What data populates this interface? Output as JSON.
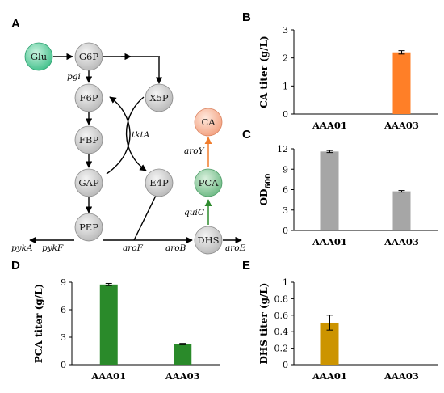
{
  "panels": {
    "a": "A",
    "b": "B",
    "c": "C",
    "d": "D",
    "e": "E"
  },
  "pathway": {
    "nodes": {
      "glu": "Glu",
      "g6p": "G6P",
      "f6p": "F6P",
      "fbp": "FBP",
      "gap": "GAP",
      "pep": "PEP",
      "x5p": "X5P",
      "e4p": "E4P",
      "dhs": "DHS",
      "pca": "PCA",
      "ca": "CA"
    },
    "enzymes": {
      "pgi": "pgi",
      "tkta": "tktA",
      "pyka": "pykA",
      "pykf": "pykF",
      "arof": "aroF",
      "arob": "aroB",
      "aroe": "aroE",
      "quic": "quiC",
      "aroy": "aroY"
    },
    "colors": {
      "glu": "#4fcf9a",
      "gray_node": "#c8c8c8",
      "pca": "#7fc79a",
      "ca": "#f6b195",
      "arrow_orange": "#f07c2c",
      "arrow_green": "#2e8b2e"
    }
  },
  "chart_data": [
    {
      "id": "B",
      "type": "bar",
      "ylabel": "CA titer (g/L)",
      "categories": [
        "AAA01",
        "AAA03"
      ],
      "values": [
        0,
        2.2
      ],
      "errors": [
        0,
        0.06
      ],
      "ylim": [
        0,
        3
      ],
      "yticks": [
        "0",
        "1",
        "2",
        "3"
      ],
      "color": "#ff7f27"
    },
    {
      "id": "C",
      "type": "bar",
      "ylabel": "OD",
      "ylabel_sub": "600",
      "categories": [
        "AAA01",
        "AAA03"
      ],
      "values": [
        11.6,
        5.75
      ],
      "errors": [
        0.15,
        0.12
      ],
      "ylim": [
        0,
        12
      ],
      "yticks": [
        "0",
        "3",
        "6",
        "9",
        "12"
      ],
      "color": "#a6a6a6"
    },
    {
      "id": "D",
      "type": "bar",
      "ylabel": "PCA titer (g/L)",
      "categories": [
        "AAA01",
        "AAA03"
      ],
      "values": [
        8.75,
        2.25
      ],
      "errors": [
        0.12,
        0.07
      ],
      "ylim": [
        0,
        9
      ],
      "yticks": [
        "0",
        "3",
        "6",
        "9"
      ],
      "color": "#2a8a2a"
    },
    {
      "id": "E",
      "type": "bar",
      "ylabel": "DHS titer (g/L)",
      "categories": [
        "AAA01",
        "AAA03"
      ],
      "values": [
        0.51,
        0
      ],
      "errors": [
        0.09,
        0
      ],
      "ylim": [
        0,
        1
      ],
      "yticks": [
        "0",
        "0.2",
        "0.4",
        "0.6",
        "0.8",
        "1"
      ],
      "color": "#cc9400"
    }
  ]
}
